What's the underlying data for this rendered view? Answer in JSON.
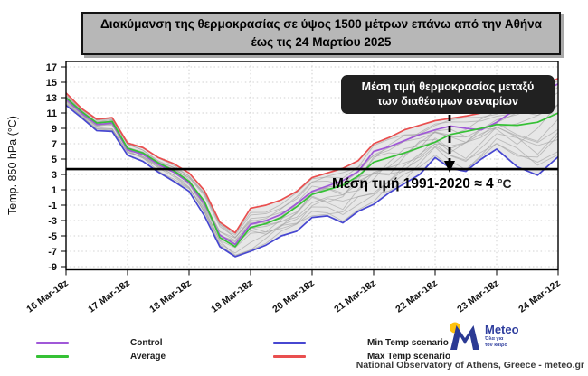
{
  "title": {
    "line1": "Διακύμανση της θερμοκρασίας σε ύψος 1500 μέτρων επάνω από την Αθήνα",
    "line2": "έως τις 24 Μαρτίου 2025"
  },
  "annotation": {
    "line1": "Μέση τιμή θερμοκρασίας μεταξύ",
    "line2": "των διαθέσιμων σεναρίων"
  },
  "reference": {
    "label_prefix": "Μέση τιμή 1991-2020 ≈ 4",
    "label_unit": "°C"
  },
  "legend_display_order": [
    0,
    2,
    1,
    3
  ],
  "footer": {
    "credit": "National Observatory of Athens, Greece - meteo.gr",
    "logo": {
      "brand": "Meteo",
      "tagline1": "Όλα για",
      "tagline2": "τον καιρό"
    }
  },
  "colors": {
    "control": "#a058d8",
    "average": "#35c135",
    "min": "#4747d1",
    "max": "#e94f4f",
    "reference_line": "#000000",
    "title_box_bg": "#b7b7b7",
    "annotation_bg": "#212121",
    "envelope_fill": "#e3e3e3",
    "ensemble_line": "#a3a3a3",
    "logo_blue": "#2b3a94",
    "logo_yellow": "#ffc20e"
  },
  "chart_data": {
    "type": "line",
    "ylabel": "Temp. 850 hPa (°C)",
    "yticks": [
      17,
      15,
      13,
      11,
      9,
      7,
      5,
      3,
      1,
      -1,
      -3,
      -5,
      -7,
      -9
    ],
    "ylim": [
      -9.4,
      17.7
    ],
    "grid": "dotted",
    "n_points": 32,
    "time_step_hours": 6,
    "xtick_labels": [
      "16 Mar-18z",
      "17 Mar-18z",
      "18 Mar-18z",
      "19 Mar-18z",
      "20 Mar-18z",
      "21 Mar-18z",
      "22 Mar-18z",
      "23 Mar-18z",
      "24 Mar-12z"
    ],
    "xtick_indices": [
      0,
      4,
      8,
      12,
      16,
      20,
      24,
      28,
      31
    ],
    "reference_line_value": 3.7,
    "series": [
      {
        "name": "Control",
        "color": "#a058d8",
        "values": [
          12.8,
          11.0,
          9.5,
          9.7,
          6.2,
          5.6,
          4.3,
          3.3,
          1.9,
          -0.8,
          -4.9,
          -6.1,
          -3.5,
          -3.0,
          -2.2,
          -0.8,
          0.8,
          1.5,
          2.2,
          3.4,
          6.0,
          6.6,
          7.4,
          8.2,
          8.8,
          9.3,
          9.0,
          8.8,
          9.8,
          11.6,
          13.4,
          14.8
        ]
      },
      {
        "name": "Average",
        "color": "#35c135",
        "values": [
          13.0,
          11.2,
          9.7,
          9.9,
          6.4,
          5.8,
          4.5,
          3.5,
          2.1,
          -0.5,
          -5.2,
          -6.4,
          -3.9,
          -3.4,
          -2.6,
          -1.2,
          0.4,
          1.0,
          1.6,
          2.8,
          4.6,
          5.2,
          5.8,
          6.5,
          7.2,
          8.2,
          8.6,
          9.0,
          9.5,
          9.4,
          9.8,
          11.0
        ]
      },
      {
        "name": "Min Temp scenario",
        "color": "#4747d1",
        "values": [
          12.0,
          10.4,
          8.7,
          8.6,
          5.5,
          4.7,
          3.3,
          2.1,
          0.8,
          -2.4,
          -6.4,
          -7.7,
          -7.0,
          -6.2,
          -5.0,
          -4.4,
          -2.6,
          -2.4,
          -3.3,
          -1.8,
          -0.9,
          0.6,
          1.8,
          3.0,
          5.2,
          3.8,
          3.4,
          5.0,
          6.3,
          4.0,
          2.9,
          5.3
        ]
      },
      {
        "name": "Max Temp scenario",
        "color": "#e94f4f",
        "values": [
          13.6,
          11.6,
          10.2,
          10.4,
          7.1,
          6.5,
          5.2,
          4.4,
          3.2,
          0.9,
          -3.2,
          -4.6,
          -1.4,
          -1.0,
          -0.3,
          0.8,
          2.6,
          3.2,
          3.8,
          4.8,
          7.0,
          7.8,
          8.8,
          9.4,
          10.0,
          10.3,
          10.6,
          11.0,
          11.8,
          13.0,
          14.2,
          15.5
        ]
      }
    ],
    "ensemble": {
      "count": 14,
      "base_weights": [
        0.08,
        0.15,
        0.22,
        0.3,
        0.38,
        0.45,
        0.52,
        0.58,
        0.65,
        0.72,
        0.78,
        0.85,
        0.92,
        0.5
      ],
      "amp": [
        0.1,
        0.14,
        0.09,
        0.12,
        0.15,
        0.1,
        0.13,
        0.11,
        0.14,
        0.1,
        0.12,
        0.08,
        0.1,
        0.18
      ],
      "freq": [
        0.9,
        1.3,
        0.7,
        1.1,
        1.5,
        0.8,
        1.2,
        1.0,
        1.4,
        0.6,
        1.05,
        0.85,
        1.25,
        1.6
      ],
      "phase": [
        0.5,
        2.1,
        4.0,
        1.2,
        3.3,
        5.1,
        0.2,
        2.8,
        4.6,
        1.8,
        3.9,
        5.6,
        0.9,
        2.5
      ]
    }
  }
}
